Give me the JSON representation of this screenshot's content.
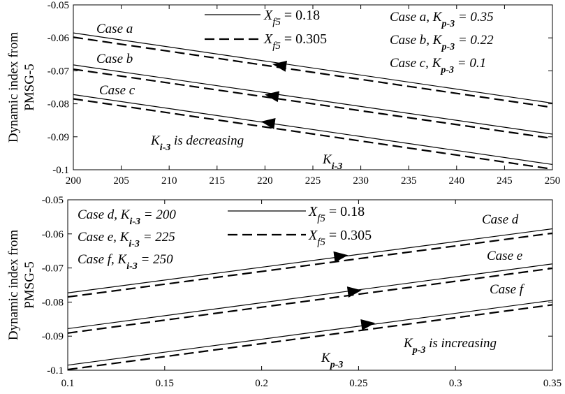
{
  "chart_data": [
    {
      "type": "line",
      "xlabel_symbol": "K",
      "xlabel_sub": "i-3",
      "ylabel_lines": [
        "Dynamic index from",
        "PMSG-5"
      ],
      "xlim": [
        200,
        250
      ],
      "ylim": [
        -0.1,
        -0.05
      ],
      "xticks": [
        "200",
        "205",
        "210",
        "215",
        "220",
        "225",
        "230",
        "235",
        "240",
        "245",
        "250"
      ],
      "yticks": [
        "-0.05",
        "-0.06",
        "-0.07",
        "-0.08",
        "-0.09",
        "-0.1"
      ],
      "x": [
        200,
        250
      ],
      "series": [
        {
          "case": "a",
          "xf5": "0.18",
          "style": "solid",
          "values": [
            -0.0585,
            -0.0798
          ]
        },
        {
          "case": "a",
          "xf5": "0.305",
          "style": "dashed",
          "values": [
            -0.0598,
            -0.0811
          ]
        },
        {
          "case": "b",
          "xf5": "0.18",
          "style": "solid",
          "values": [
            -0.0682,
            -0.0892
          ]
        },
        {
          "case": "b",
          "xf5": "0.305",
          "style": "dashed",
          "values": [
            -0.0695,
            -0.0905
          ]
        },
        {
          "case": "c",
          "xf5": "0.18",
          "style": "solid",
          "values": [
            -0.0772,
            -0.0984
          ]
        },
        {
          "case": "c",
          "xf5": "0.305",
          "style": "dashed",
          "values": [
            -0.0785,
            -0.0998
          ]
        }
      ],
      "arrows": [
        {
          "x": 221.5,
          "y": -0.0683,
          "direction": "left"
        },
        {
          "x": 220.7,
          "y": -0.0775,
          "direction": "left"
        },
        {
          "x": 220.3,
          "y": -0.0857,
          "direction": "left"
        }
      ],
      "legend": {
        "symbol": "X",
        "sub": "f5",
        "entries": [
          {
            "style": "solid",
            "value": "= 0.18"
          },
          {
            "style": "dashed",
            "value": "= 0.305"
          }
        ]
      },
      "case_params": {
        "label": "K",
        "sub": "p-3",
        "items": [
          {
            "prefix": "Case a, ",
            "value": "= 0.35"
          },
          {
            "prefix": "Case b, ",
            "value": "= 0.22"
          },
          {
            "prefix": "Case c, ",
            "value": "= 0.1"
          }
        ]
      },
      "case_labels": [
        "Case a",
        "Case b",
        "Case c"
      ],
      "trend_note": {
        "symbol": "K",
        "sub": "i-3",
        "text": " is decreasing"
      }
    },
    {
      "type": "line",
      "xlabel_symbol": "K",
      "xlabel_sub": "p-3",
      "ylabel_lines": [
        "Dynamic index from",
        "PMSG-5"
      ],
      "xlim": [
        0.1,
        0.35
      ],
      "ylim": [
        -0.1,
        -0.05
      ],
      "xticks": [
        "0.1",
        "0.15",
        "0.2",
        "0.25",
        "0.3",
        "0.35"
      ],
      "yticks": [
        "-0.05",
        "-0.06",
        "-0.07",
        "-0.08",
        "-0.09",
        "-0.1"
      ],
      "x": [
        0.1,
        0.35
      ],
      "series": [
        {
          "case": "d",
          "xf5": "0.18",
          "style": "solid",
          "values": [
            -0.0773,
            -0.0585
          ]
        },
        {
          "case": "d",
          "xf5": "0.305",
          "style": "dashed",
          "values": [
            -0.0785,
            -0.0598
          ]
        },
        {
          "case": "e",
          "xf5": "0.18",
          "style": "solid",
          "values": [
            -0.0878,
            -0.0688
          ]
        },
        {
          "case": "e",
          "xf5": "0.305",
          "style": "dashed",
          "values": [
            -0.0891,
            -0.0701
          ]
        },
        {
          "case": "f",
          "xf5": "0.18",
          "style": "solid",
          "values": [
            -0.0985,
            -0.0795
          ]
        },
        {
          "case": "f",
          "xf5": "0.305",
          "style": "dashed",
          "values": [
            -0.0998,
            -0.0808
          ]
        }
      ],
      "arrows": [
        {
          "x": 0.241,
          "y": -0.0665,
          "direction": "right"
        },
        {
          "x": 0.248,
          "y": -0.0768,
          "direction": "right"
        },
        {
          "x": 0.255,
          "y": -0.0864,
          "direction": "right"
        }
      ],
      "legend": {
        "symbol": "X",
        "sub": "f5",
        "entries": [
          {
            "style": "solid",
            "value": "= 0.18"
          },
          {
            "style": "dashed",
            "value": "= 0.305"
          }
        ]
      },
      "case_params": {
        "label": "K",
        "sub": "i-3",
        "items": [
          {
            "prefix": "Case d, ",
            "value": "= 200"
          },
          {
            "prefix": "Case e, ",
            "value": "= 225"
          },
          {
            "prefix": "Case f, ",
            "value": "= 250"
          }
        ]
      },
      "case_labels": [
        "Case d",
        "Case e",
        "Case f"
      ],
      "trend_note": {
        "symbol": "K",
        "sub": "p-3",
        "text": " is increasing"
      }
    }
  ]
}
